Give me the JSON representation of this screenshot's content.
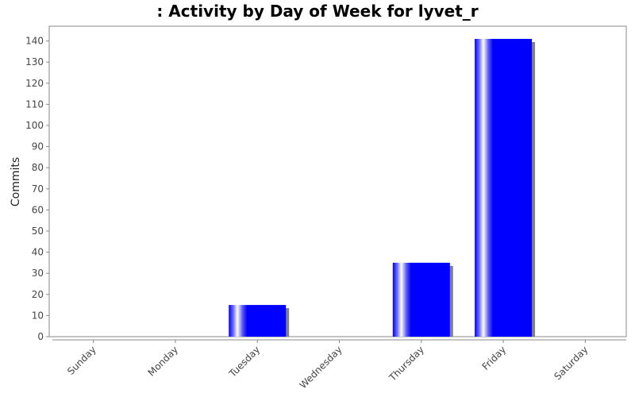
{
  "chart_data": {
    "type": "bar",
    "title": ": Activity by Day of Week for lyvet_r",
    "xlabel": "",
    "ylabel": "Commits",
    "categories": [
      "Sunday",
      "Monday",
      "Tuesday",
      "Wednesday",
      "Thursday",
      "Friday",
      "Saturday"
    ],
    "values": [
      0,
      0,
      15,
      0,
      35,
      141,
      0
    ],
    "ylim": [
      0,
      147
    ],
    "yticks": [
      0,
      10,
      20,
      30,
      40,
      50,
      60,
      70,
      80,
      90,
      100,
      110,
      120,
      130,
      140
    ],
    "grid": false,
    "bar_color": "#0000ff",
    "shadow_color": "#808080"
  }
}
